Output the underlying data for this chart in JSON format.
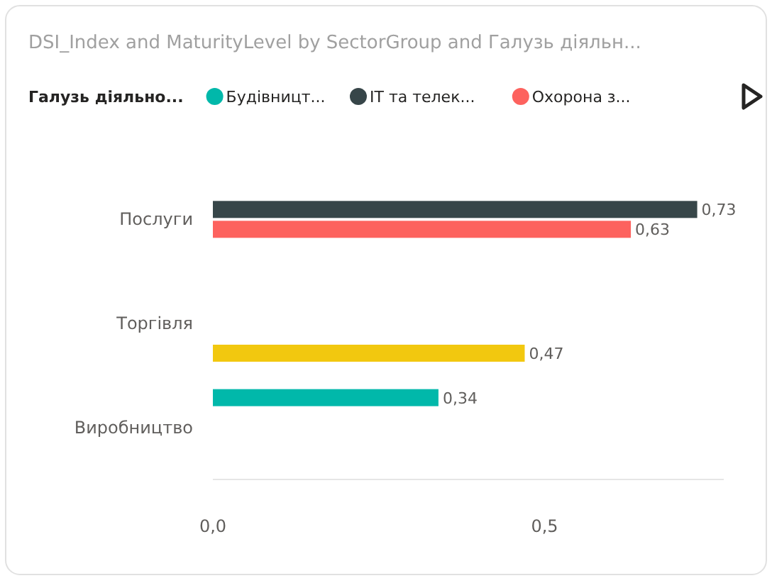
{
  "chart_data": {
    "type": "bar",
    "orientation": "horizontal",
    "title": "DSI_Index and MaturityLevel by SectorGroup and Галузь діяльн...",
    "legend_title": "Галузь діяльно...",
    "categories": [
      "Послуги",
      "Торгівля",
      "Виробництво"
    ],
    "series": [
      {
        "name": "Будівницт...",
        "color": "#01b8aa",
        "values": [
          null,
          null,
          0.34
        ],
        "value_labels": [
          null,
          null,
          "0,34"
        ]
      },
      {
        "name": "IT та телек...",
        "color": "#374649",
        "values": [
          0.73,
          null,
          null
        ],
        "value_labels": [
          "0,73",
          null,
          null
        ]
      },
      {
        "name": "Охорона з...",
        "color": "#fd625e",
        "values": [
          0.63,
          null,
          null
        ],
        "value_labels": [
          "0,63",
          null,
          null
        ]
      },
      {
        "color": "#f2c80f",
        "values": [
          null,
          0.47,
          null
        ],
        "value_labels": [
          null,
          "0,47",
          null
        ]
      }
    ],
    "xlim": [
      0,
      0.77
    ],
    "xticks": [
      {
        "value": 0,
        "label": "0,0"
      },
      {
        "value": 0.5,
        "label": "0,5"
      }
    ],
    "grid": false,
    "legend": "top"
  }
}
